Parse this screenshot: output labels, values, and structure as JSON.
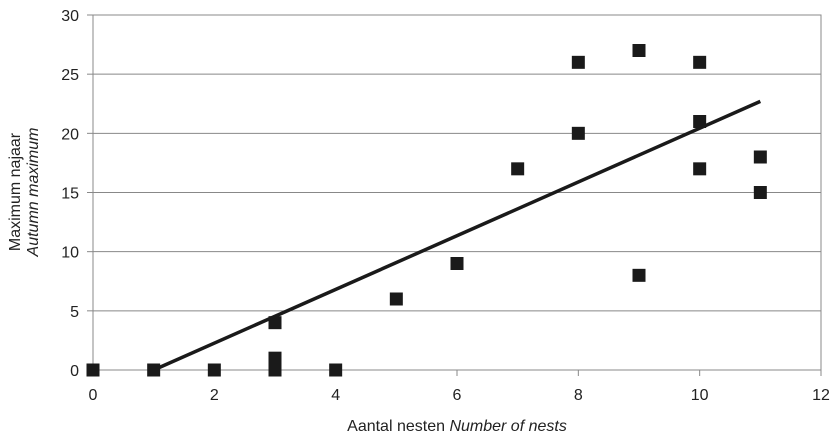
{
  "chart_data": {
    "type": "scatter",
    "xlabel": "Aantal nesten",
    "xlabel_italic": "Number of nests",
    "ylabel": "Maximum najaar",
    "ylabel_italic": "Autumn maximum",
    "xlim": [
      0,
      12
    ],
    "ylim": [
      0,
      30
    ],
    "xticks": [
      0,
      2,
      4,
      6,
      8,
      10,
      12
    ],
    "yticks": [
      0,
      5,
      10,
      15,
      20,
      25,
      30
    ],
    "grid": "horizontal",
    "legend": "none",
    "marker": "square",
    "marker_color": "#1a1a1a",
    "points": [
      {
        "x": 0,
        "y": 0
      },
      {
        "x": 1,
        "y": 0
      },
      {
        "x": 2,
        "y": 0
      },
      {
        "x": 3,
        "y": 0
      },
      {
        "x": 3,
        "y": 1
      },
      {
        "x": 3,
        "y": 4
      },
      {
        "x": 4,
        "y": 0
      },
      {
        "x": 5,
        "y": 6
      },
      {
        "x": 6,
        "y": 9
      },
      {
        "x": 7,
        "y": 17
      },
      {
        "x": 8,
        "y": 26
      },
      {
        "x": 8,
        "y": 20
      },
      {
        "x": 9,
        "y": 27
      },
      {
        "x": 9,
        "y": 8
      },
      {
        "x": 10,
        "y": 26
      },
      {
        "x": 10,
        "y": 21
      },
      {
        "x": 10,
        "y": 17
      },
      {
        "x": 11,
        "y": 18
      },
      {
        "x": 11,
        "y": 15
      }
    ],
    "trendline": {
      "type": "linear",
      "points": [
        {
          "x": 1,
          "y": 0
        },
        {
          "x": 11,
          "y": 22.7
        }
      ],
      "color": "#1a1a1a"
    }
  }
}
